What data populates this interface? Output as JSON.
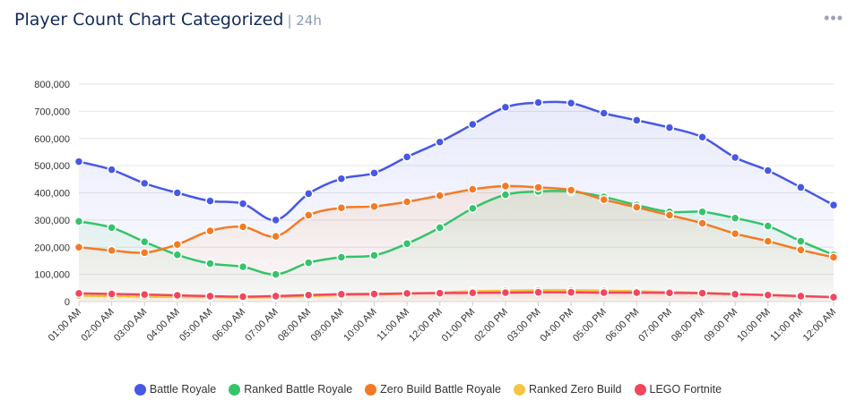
{
  "header": {
    "title": "Player Count Chart Categorized",
    "subtitle": "| 24h",
    "menu_icon": "ellipsis-icon"
  },
  "chart_data": {
    "type": "area",
    "title": "Player Count Chart Categorized",
    "xlabel": "",
    "ylabel": "",
    "ylim": [
      0,
      800000
    ],
    "yticks": [
      "0",
      "100,000",
      "200,000",
      "300,000",
      "400,000",
      "500,000",
      "600,000",
      "700,000",
      "800,000"
    ],
    "grid": true,
    "legend": "bottom",
    "categories": [
      "01:00 AM",
      "02:00 AM",
      "03:00 AM",
      "04:00 AM",
      "05:00 AM",
      "06:00 AM",
      "07:00 AM",
      "08:00 AM",
      "09:00 AM",
      "10:00 AM",
      "11:00 AM",
      "12:00 PM",
      "01:00 PM",
      "02:00 PM",
      "03:00 PM",
      "04:00 PM",
      "05:00 PM",
      "06:00 PM",
      "07:00 PM",
      "08:00 PM",
      "09:00 PM",
      "10:00 PM",
      "11:00 PM",
      "12:00 AM"
    ],
    "series": [
      {
        "name": "Battle Royale",
        "color": "#4757e6",
        "values": [
          515000,
          485000,
          435000,
          400000,
          370000,
          360000,
          300000,
          397000,
          452000,
          473000,
          532000,
          587000,
          652000,
          715000,
          732000,
          730000,
          693000,
          667000,
          640000,
          605000,
          530000,
          482000,
          420000,
          355000
        ]
      },
      {
        "name": "Ranked Battle Royale",
        "color": "#34c46a",
        "values": [
          295000,
          272000,
          220000,
          172000,
          140000,
          128000,
          100000,
          143000,
          163000,
          170000,
          213000,
          272000,
          343000,
          393000,
          405000,
          405000,
          385000,
          355000,
          330000,
          330000,
          307000,
          278000,
          222000,
          172000
        ]
      },
      {
        "name": "Zero Build Battle Royale",
        "color": "#f57a24",
        "values": [
          200000,
          188000,
          180000,
          210000,
          260000,
          275000,
          240000,
          318000,
          345000,
          350000,
          367000,
          390000,
          413000,
          425000,
          420000,
          410000,
          375000,
          347000,
          318000,
          288000,
          250000,
          222000,
          190000,
          163000
        ]
      },
      {
        "name": "Ranked Zero Build",
        "color": "#f4c542",
        "values": [
          22000,
          20000,
          18000,
          17000,
          16000,
          15000,
          16000,
          20000,
          24000,
          26000,
          29000,
          33000,
          38000,
          40000,
          42000,
          42000,
          40000,
          38000,
          35000,
          32000,
          28000,
          24000,
          20000,
          17000
        ]
      },
      {
        "name": "LEGO Fortnite",
        "color": "#f2465f",
        "values": [
          30000,
          28000,
          26000,
          23000,
          20000,
          18000,
          20000,
          24000,
          27000,
          28000,
          30000,
          31000,
          32000,
          33000,
          34000,
          34000,
          33000,
          33000,
          32000,
          31000,
          27000,
          24000,
          20000,
          16000
        ]
      }
    ]
  }
}
